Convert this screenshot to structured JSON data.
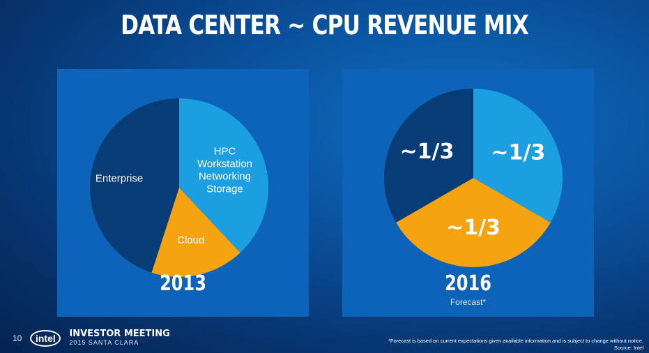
{
  "title": "DATA CENTER ~ CPU REVENUE MIX",
  "chart_data": [
    {
      "type": "pie",
      "year": "2013",
      "slices": [
        {
          "label": "HPC\nWorkstation\nNetworking\nStorage",
          "value": 38,
          "color": "#1c9fe1"
        },
        {
          "label": "Cloud",
          "value": 17,
          "color": "#f6a311"
        },
        {
          "label": "Enterprise",
          "value": 45,
          "color": "#083c77"
        }
      ]
    },
    {
      "type": "pie",
      "year": "2016",
      "subtitle": "Forecast*",
      "slices": [
        {
          "label": "~1/3",
          "value": 33.33,
          "color": "#1c9fe1"
        },
        {
          "label": "~1/3",
          "value": 33.33,
          "color": "#f6a311"
        },
        {
          "label": "~1/3",
          "value": 33.34,
          "color": "#083c77"
        }
      ]
    }
  ],
  "footer": {
    "page_number": "10",
    "logo_text": "intel",
    "event_line1": "INVESTOR MEETING",
    "event_line2": "2015 SANTA CLARA",
    "footnote_line1": "*Forecast is based on current expectations given available information and is subject to change without notice.",
    "footnote_line2": "Source: Intel"
  }
}
